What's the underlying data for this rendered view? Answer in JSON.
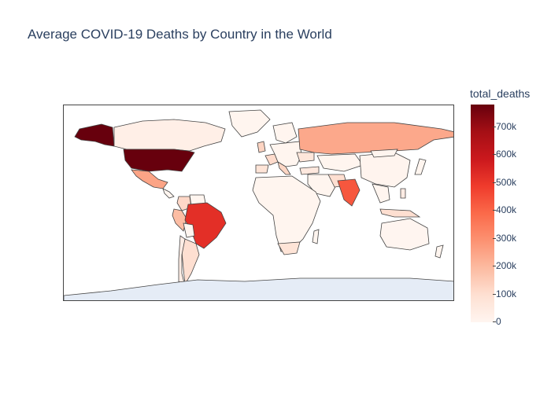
{
  "title": "Average COVID-19 Deaths by Country in the World",
  "colorbar": {
    "title": "total_deaths",
    "ticks": [
      "700k",
      "600k",
      "500k",
      "400k",
      "300k",
      "200k",
      "100k",
      "0"
    ],
    "colorscale": [
      "#fff5f0",
      "#fee0d2",
      "#fcbba1",
      "#fc9272",
      "#fb6a4a",
      "#ef3b2c",
      "#cb181d",
      "#a50f15",
      "#67000d"
    ]
  },
  "map": {
    "projection": "equirectangular",
    "antarctica_color": "#e5ecf6",
    "border_color": "#444444"
  },
  "chart_data": {
    "type": "choropleth",
    "title": "Average COVID-19 Deaths by Country in the World",
    "colorbar_title": "total_deaths",
    "z_range": [
      0,
      780000
    ],
    "countries": [
      {
        "name": "United States",
        "value": 780000
      },
      {
        "name": "Brazil",
        "value": 520000
      },
      {
        "name": "India",
        "value": 430000
      },
      {
        "name": "Mexico",
        "value": 250000
      },
      {
        "name": "Russia",
        "value": 240000
      },
      {
        "name": "Peru",
        "value": 190000
      },
      {
        "name": "Indonesia",
        "value": 100000
      },
      {
        "name": "United Kingdom",
        "value": 130000
      },
      {
        "name": "Italy",
        "value": 125000
      },
      {
        "name": "Colombia",
        "value": 120000
      },
      {
        "name": "Iran",
        "value": 100000
      },
      {
        "name": "France",
        "value": 110000
      },
      {
        "name": "Argentina",
        "value": 100000
      },
      {
        "name": "Germany",
        "value": 90000
      },
      {
        "name": "South Africa",
        "value": 80000
      },
      {
        "name": "Spain",
        "value": 80000
      },
      {
        "name": "Ukraine",
        "value": 70000
      },
      {
        "name": "Poland",
        "value": 75000
      },
      {
        "name": "Turkey",
        "value": 60000
      },
      {
        "name": "Philippines",
        "value": 40000
      },
      {
        "name": "Chile",
        "value": 35000
      },
      {
        "name": "Canada",
        "value": 28000
      },
      {
        "name": "China",
        "value": 5000
      },
      {
        "name": "Australia",
        "value": 1500
      }
    ]
  }
}
